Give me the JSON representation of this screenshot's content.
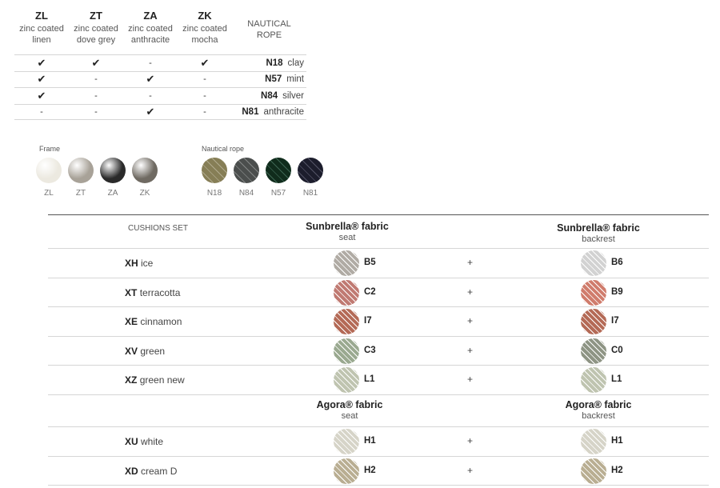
{
  "finish_table": {
    "columns": [
      {
        "code": "ZL",
        "line1": "zinc coated",
        "line2": "linen"
      },
      {
        "code": "ZT",
        "line1": "zinc coated",
        "line2": "dove grey"
      },
      {
        "code": "ZA",
        "line1": "zinc coated",
        "line2": "anthracite"
      },
      {
        "code": "ZK",
        "line1": "zinc coated",
        "line2": "mocha"
      }
    ],
    "rope_header_line1": "NAUTICAL",
    "rope_header_line2": "ROPE",
    "rows": [
      {
        "marks": [
          "✔",
          "✔",
          "-",
          "✔"
        ],
        "rope_code": "N18",
        "rope_name": "clay"
      },
      {
        "marks": [
          "✔",
          "-",
          "✔",
          "-"
        ],
        "rope_code": "N57",
        "rope_name": "mint"
      },
      {
        "marks": [
          "✔",
          "-",
          "-",
          "-"
        ],
        "rope_code": "N84",
        "rope_name": "silver"
      },
      {
        "marks": [
          "-",
          "-",
          "✔",
          "-"
        ],
        "rope_code": "N81",
        "rope_name": "anthracite"
      }
    ]
  },
  "frame_swatches": {
    "title": "Frame",
    "items": [
      {
        "label": "ZL",
        "color": "#ece9e0"
      },
      {
        "label": "ZT",
        "color": "#a8a298"
      },
      {
        "label": "ZA",
        "color": "#2a2a2a"
      },
      {
        "label": "ZK",
        "color": "#6f6a62"
      }
    ]
  },
  "rope_swatches": {
    "title": "Nautical rope",
    "items": [
      {
        "label": "N18",
        "color": "#b9b394"
      },
      {
        "label": "N84",
        "color": "#8a8d8c"
      },
      {
        "label": "N57",
        "color": "#3f6a55"
      },
      {
        "label": "N81",
        "color": "#55566a"
      }
    ]
  },
  "cushions": {
    "header_label": "CUSHIONS SET",
    "group1": {
      "seat_title": "Sunbrella® fabric",
      "seat_sub": "seat",
      "back_title": "Sunbrella® fabric",
      "back_sub": "backrest",
      "rows": [
        {
          "code": "XH",
          "name": "ice",
          "seat_code": "B5",
          "seat_color": "#b0aba4",
          "back_code": "B6",
          "back_color": "#d2d2d2"
        },
        {
          "code": "XT",
          "name": "terracotta",
          "seat_code": "C2",
          "seat_color": "#c07a72",
          "back_code": "B9",
          "back_color": "#d07c6c"
        },
        {
          "code": "XE",
          "name": "cinnamon",
          "seat_code": "I7",
          "seat_color": "#b46a56",
          "back_code": "I7",
          "back_color": "#b46a56"
        },
        {
          "code": "XV",
          "name": "green",
          "seat_code": "C3",
          "seat_color": "#9aa990",
          "back_code": "C0",
          "back_color": "#8e9484"
        },
        {
          "code": "XZ",
          "name": "green new",
          "seat_code": "L1",
          "seat_color": "#bfc4b0",
          "back_code": "L1",
          "back_color": "#bfc4b0"
        }
      ]
    },
    "group2": {
      "seat_title": "Agora® fabric",
      "seat_sub": "seat",
      "back_title": "Agora® fabric",
      "back_sub": "backrest",
      "rows": [
        {
          "code": "XU",
          "name": "white",
          "seat_code": "H1",
          "seat_color": "#d6d4c8",
          "back_code": "H1",
          "back_color": "#d6d4c8"
        },
        {
          "code": "XD",
          "name": "cream D",
          "seat_code": "H2",
          "seat_color": "#b9ae92",
          "back_code": "H2",
          "back_color": "#b9ae92"
        }
      ]
    },
    "plus_sign": "+"
  }
}
